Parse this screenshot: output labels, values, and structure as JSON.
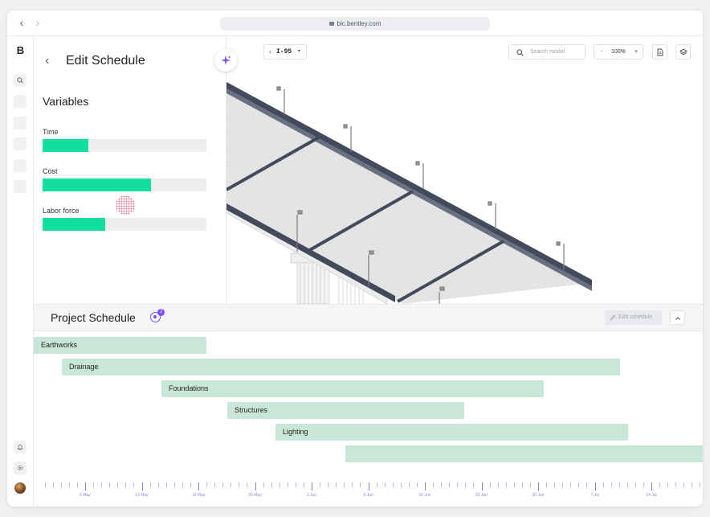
{
  "browser": {
    "back_label": "‹",
    "forward_label": "›",
    "url": "bic.bentley.com"
  },
  "rail": {
    "logo_text": "B",
    "icons": [
      "search-icon",
      "nav-item-icon",
      "nav-item-icon",
      "nav-item-icon",
      "nav-item-icon",
      "nav-item-icon",
      "bell-icon",
      "gear-icon"
    ]
  },
  "panel": {
    "title": "Edit Schedule",
    "variables_heading": "Variables",
    "variables": [
      {
        "label": "Time",
        "level": 0.28
      },
      {
        "label": "Cost",
        "level": 0.66
      },
      {
        "label": "Labor force",
        "level": 0.38
      }
    ]
  },
  "viewport": {
    "road_value": "I-95",
    "search_placeholder": "Search model",
    "zoom_minus": "-",
    "zoom_level": "100%",
    "zoom_plus": "+"
  },
  "schedule": {
    "title": "Project Schedule",
    "badge_count": "2",
    "edit_label": "Edit schedule",
    "tasks": [
      {
        "label": "Earthworks"
      },
      {
        "label": "Drainage"
      },
      {
        "label": "Foundations"
      },
      {
        "label": "Structures"
      },
      {
        "label": "Lighting"
      },
      {
        "label": ""
      }
    ],
    "axis_labels": [
      "5 May",
      "12 May",
      "19 May",
      "26 May",
      "2 Jun",
      "9 Jun",
      "16 Jun",
      "23 Jun",
      "30 Jun",
      "7 Jul",
      "14 Jul"
    ]
  },
  "colors": {
    "accent": "#7c4dff",
    "variable_fill": "#10dfa0",
    "gantt_bar": "#c9e7d9",
    "bridge_frame": "#434a5c",
    "deck": "#e3e3e3"
  }
}
